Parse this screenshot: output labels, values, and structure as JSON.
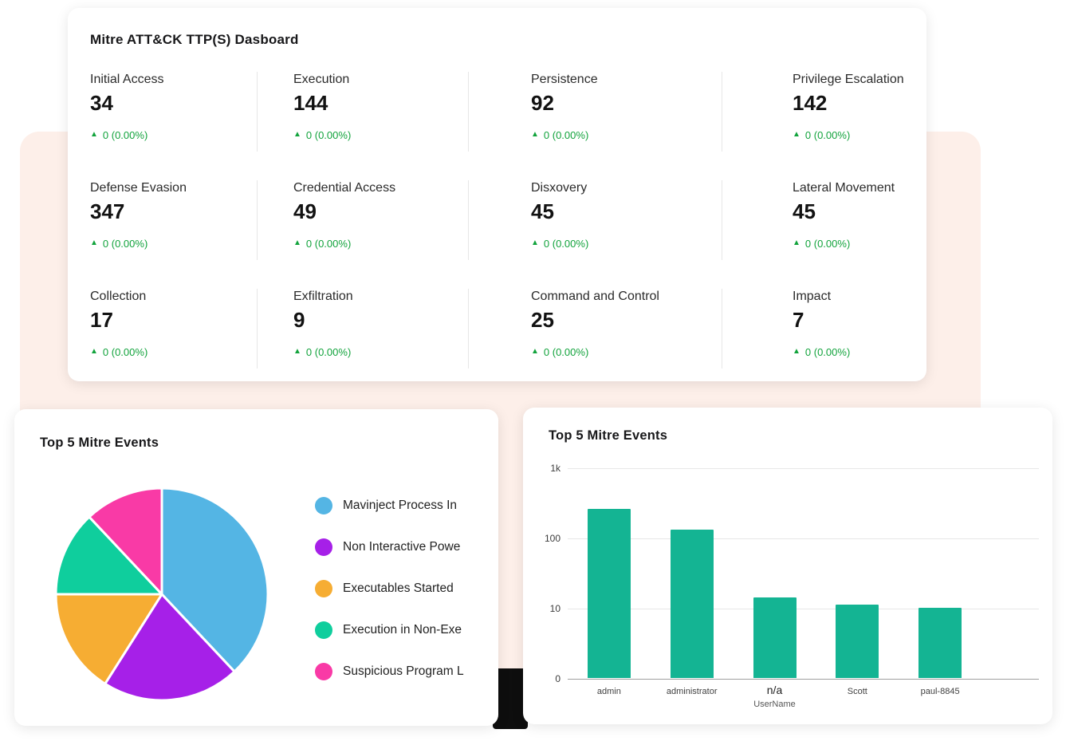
{
  "colors": {
    "panel_background": "#fdefe9",
    "card_background": "#ffffff",
    "delta_green": "#12a33c",
    "divider": "#e7e7e7",
    "grid_line": "#e7e7e7",
    "axis_line": "#9f9f9f"
  },
  "ttp_dashboard": {
    "title": "Mitre ATT&CK TTP(S) Dasboard",
    "delta_icon": "▲",
    "stats": [
      {
        "label": "Initial Access",
        "value": "34",
        "delta": "0 (0.00%)"
      },
      {
        "label": "Execution",
        "value": "144",
        "delta": "0 (0.00%)"
      },
      {
        "label": "Persistence",
        "value": "92",
        "delta": "0 (0.00%)"
      },
      {
        "label": "Privilege Escalation",
        "value": "142",
        "delta": "0 (0.00%)"
      },
      {
        "label": "Defense Evasion",
        "value": "347",
        "delta": "0 (0.00%)"
      },
      {
        "label": "Credential Access",
        "value": "49",
        "delta": "0 (0.00%)"
      },
      {
        "label": "Disxovery",
        "value": "45",
        "delta": "0 (0.00%)"
      },
      {
        "label": "Lateral Movement",
        "value": "45",
        "delta": "0 (0.00%)"
      },
      {
        "label": "Collection",
        "value": "17",
        "delta": "0 (0.00%)"
      },
      {
        "label": "Exfiltration",
        "value": "9",
        "delta": "0 (0.00%)"
      },
      {
        "label": "Command and Control",
        "value": "25",
        "delta": "0 (0.00%)"
      },
      {
        "label": "Impact",
        "value": "7",
        "delta": "0 (0.00%)"
      }
    ]
  },
  "chart_data": [
    {
      "type": "pie",
      "title": "Top 5 Mitre Events",
      "labels": [
        "Mavinject Process In",
        "Non Interactive Powe",
        "Executables Started",
        "Execution in Non-Exe",
        "Suspicious Program L"
      ],
      "values": [
        38,
        21,
        16,
        13,
        12
      ],
      "colors": [
        "#54b5e4",
        "#a620e8",
        "#f6ad33",
        "#0fce9d",
        "#f93aa6"
      ],
      "start_angle": "top",
      "direction": "clockwise",
      "legend_position": "right"
    },
    {
      "type": "bar",
      "title": "Top 5 Mitre Events",
      "categories": [
        "admin",
        "administrator",
        "n/a",
        "Scott",
        "paul-8845"
      ],
      "values": [
        260,
        130,
        14,
        11,
        10
      ],
      "xlabel": "UserName",
      "yscale": "log",
      "ylim": [
        0,
        1000
      ],
      "yticks": [
        "1k",
        "100",
        "10",
        "0"
      ],
      "bar_color": "#14b493",
      "grid": true,
      "emphasized_category_index": 2
    }
  ]
}
